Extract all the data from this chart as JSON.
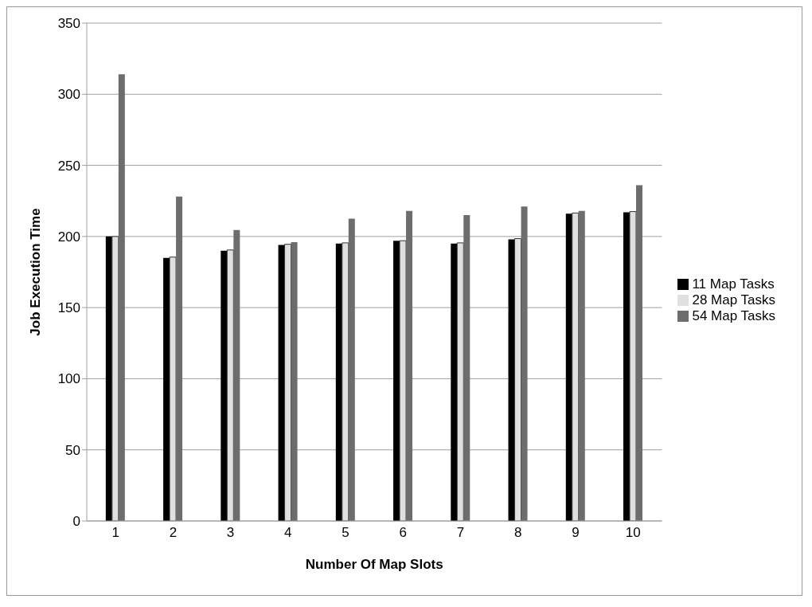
{
  "chart_data": {
    "type": "bar",
    "xlabel": "Number Of Map Slots",
    "ylabel": "Job Execution Time",
    "categories": [
      "1",
      "2",
      "3",
      "4",
      "5",
      "6",
      "7",
      "8",
      "9",
      "10"
    ],
    "series": [
      {
        "name": "11 Map Tasks",
        "color": "#000000",
        "values": [
          200,
          185,
          190,
          194,
          195,
          197,
          195,
          198,
          216,
          217
        ]
      },
      {
        "name": "28 Map Tasks",
        "color": "#e0e0e0",
        "values": [
          200,
          185.5,
          190.5,
          194.5,
          195.5,
          197,
          195.5,
          198.5,
          216.5,
          217.5
        ]
      },
      {
        "name": "54 Map Tasks",
        "color": "#6d6d6d",
        "values": [
          314,
          228,
          204.5,
          196,
          212.5,
          218,
          215,
          221,
          218,
          236
        ]
      }
    ],
    "ylim": [
      0,
      350
    ],
    "yticks": [
      0,
      50,
      100,
      150,
      200,
      250,
      300,
      350
    ],
    "grid": "y",
    "legend": "right"
  }
}
